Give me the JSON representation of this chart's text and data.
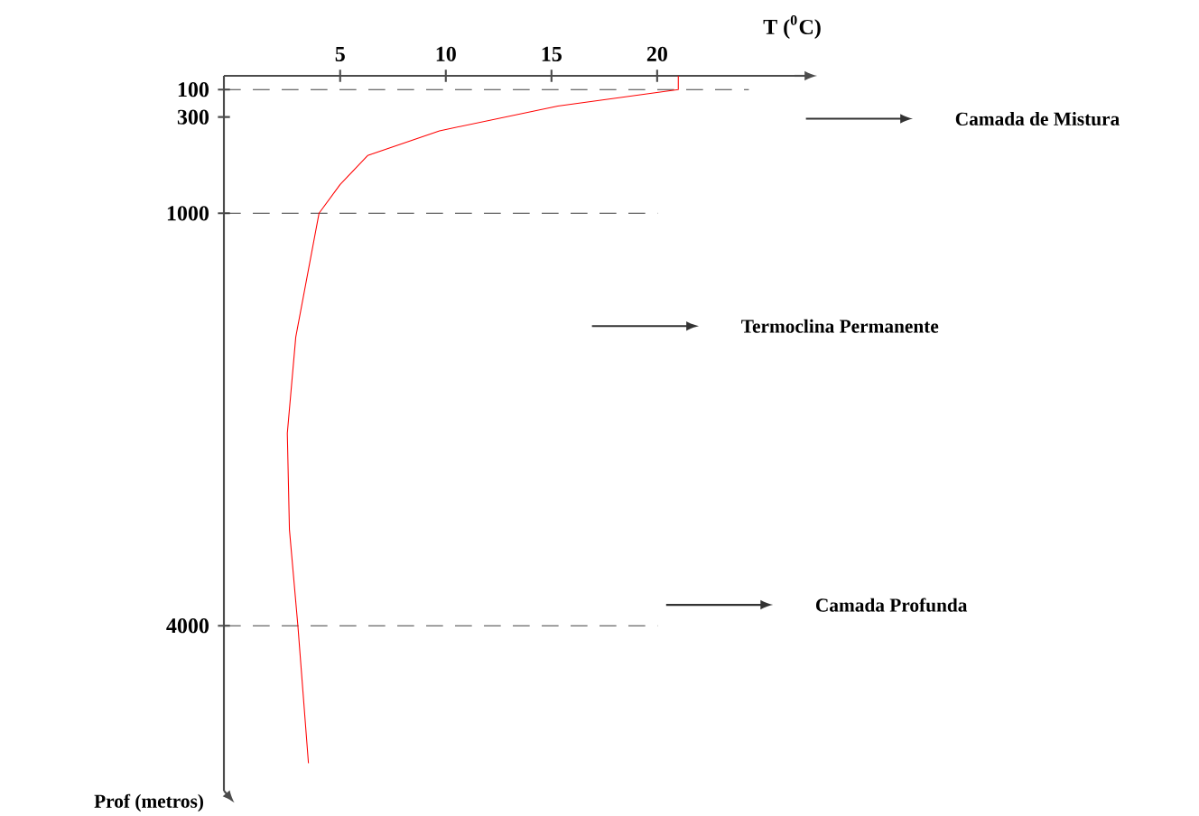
{
  "chart_data": {
    "type": "line",
    "xlabel": "T ($^{0}$C)",
    "ylabel": "Prof (metros)",
    "x": [
      21.0,
      21.0,
      15.3,
      9.7,
      6.3,
      5.0,
      4.0,
      2.9,
      2.5,
      2.6,
      3.0,
      3.5
    ],
    "series": [
      {
        "color": "#ff0000",
        "values": [
          0,
          100,
          220,
          400,
          580,
          790,
          1000,
          1900,
          2600,
          3300,
          4000,
          5000
        ]
      }
    ],
    "xlim": [
      -0.5,
      26.5
    ],
    "xticks": [
      5,
      10,
      15,
      20
    ],
    "ylim": [
      5200,
      0
    ],
    "yticks": [
      100,
      300,
      1000,
      4000
    ],
    "ref_lines": [
      {
        "axis": "y",
        "value": 100,
        "line_style": "dashed",
        "color": "#404040"
      },
      {
        "axis": "y",
        "value": 1000,
        "line_style": "dashed",
        "color": "#404040"
      },
      {
        "axis": "y",
        "value": 4000,
        "line_style": "dashed",
        "color": "#404040"
      }
    ],
    "annotations": [
      "Camada de Mistura",
      "Termoclina Permanente",
      "Camada Profunda"
    ],
    "grid": false,
    "marker": "none",
    "line_style": "solid"
  }
}
